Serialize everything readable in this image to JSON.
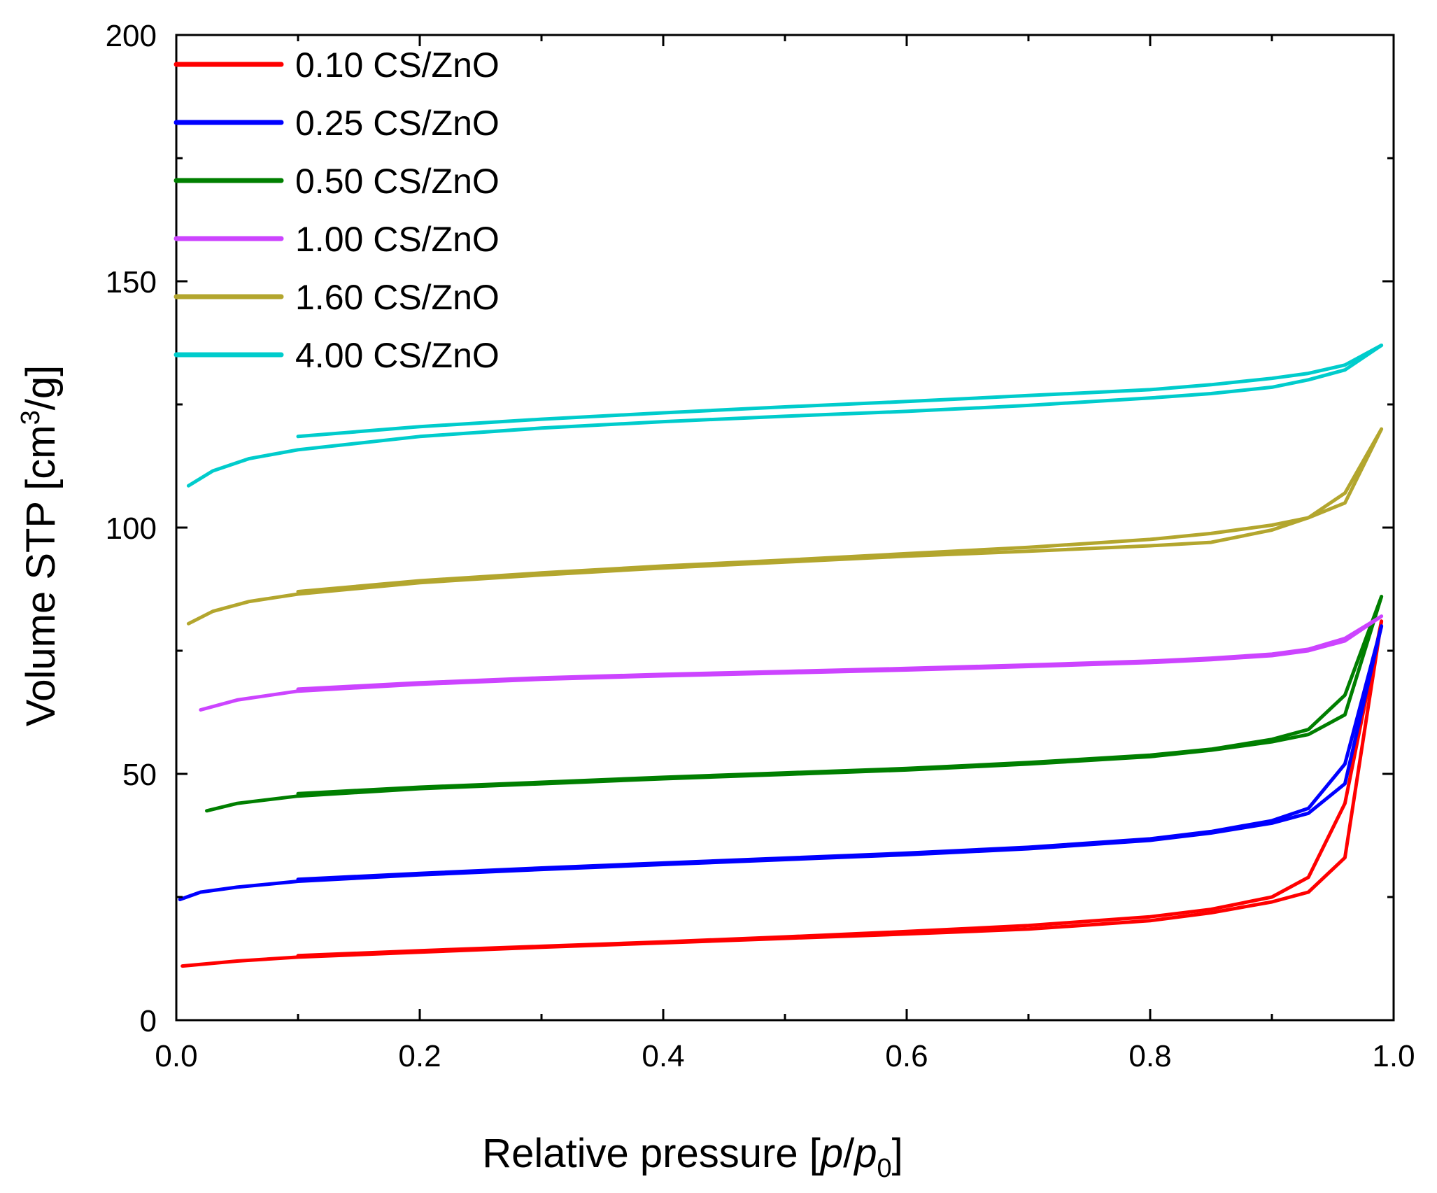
{
  "chart_data": {
    "type": "line",
    "title": "",
    "xlabel_parts": [
      "Relative pressure [",
      "p",
      "/",
      "p",
      "0",
      "]"
    ],
    "ylabel_parts": [
      "Volume STP [cm",
      "3",
      "/g]"
    ],
    "xlim": [
      0.0,
      1.0
    ],
    "ylim": [
      0,
      200
    ],
    "xticks": [
      "0.0",
      "0.2",
      "0.4",
      "0.6",
      "0.8",
      "1.0"
    ],
    "xtick_values": [
      0.0,
      0.2,
      0.4,
      0.6,
      0.8,
      1.0
    ],
    "yticks": [
      "0",
      "50",
      "100",
      "150",
      "200"
    ],
    "ytick_values": [
      0,
      50,
      100,
      150,
      200
    ],
    "grid": false,
    "legend_position": "top-left",
    "series": [
      {
        "name": "0.10 CS/ZnO",
        "color": "#ff0000",
        "adsorption": [
          [
            0.005,
            11.0
          ],
          [
            0.05,
            12.0
          ],
          [
            0.1,
            12.8
          ],
          [
            0.2,
            13.8
          ],
          [
            0.3,
            14.8
          ],
          [
            0.4,
            15.7
          ],
          [
            0.5,
            16.6
          ],
          [
            0.6,
            17.5
          ],
          [
            0.7,
            18.5
          ],
          [
            0.8,
            20.2
          ],
          [
            0.85,
            21.8
          ],
          [
            0.9,
            24.0
          ],
          [
            0.93,
            26.0
          ],
          [
            0.96,
            33.0
          ],
          [
            0.99,
            81.0
          ]
        ],
        "desorption": [
          [
            0.99,
            81.0
          ],
          [
            0.96,
            44.0
          ],
          [
            0.93,
            29.0
          ],
          [
            0.9,
            25.0
          ],
          [
            0.85,
            22.5
          ],
          [
            0.8,
            21.0
          ],
          [
            0.7,
            19.2
          ],
          [
            0.6,
            18.0
          ],
          [
            0.5,
            16.9
          ],
          [
            0.4,
            15.9
          ],
          [
            0.3,
            15.0
          ],
          [
            0.2,
            14.1
          ],
          [
            0.1,
            13.1
          ]
        ]
      },
      {
        "name": "0.25 CS/ZnO",
        "color": "#0000ff",
        "adsorption": [
          [
            0.003,
            24.5
          ],
          [
            0.02,
            26.0
          ],
          [
            0.05,
            27.0
          ],
          [
            0.1,
            28.2
          ],
          [
            0.2,
            29.5
          ],
          [
            0.3,
            30.6
          ],
          [
            0.4,
            31.6
          ],
          [
            0.5,
            32.6
          ],
          [
            0.6,
            33.6
          ],
          [
            0.7,
            34.8
          ],
          [
            0.8,
            36.5
          ],
          [
            0.85,
            38.0
          ],
          [
            0.9,
            40.0
          ],
          [
            0.93,
            42.0
          ],
          [
            0.96,
            48.0
          ],
          [
            0.99,
            80.0
          ]
        ],
        "desorption": [
          [
            0.99,
            80.0
          ],
          [
            0.96,
            52.0
          ],
          [
            0.93,
            43.0
          ],
          [
            0.9,
            40.5
          ],
          [
            0.85,
            38.3
          ],
          [
            0.8,
            36.8
          ],
          [
            0.7,
            35.1
          ],
          [
            0.6,
            33.9
          ],
          [
            0.5,
            32.9
          ],
          [
            0.4,
            31.9
          ],
          [
            0.3,
            30.9
          ],
          [
            0.2,
            29.8
          ],
          [
            0.1,
            28.6
          ]
        ]
      },
      {
        "name": "0.50 CS/ZnO",
        "color": "#007f00",
        "adsorption": [
          [
            0.025,
            42.5
          ],
          [
            0.05,
            44.0
          ],
          [
            0.1,
            45.5
          ],
          [
            0.2,
            47.0
          ],
          [
            0.3,
            48.0
          ],
          [
            0.4,
            49.0
          ],
          [
            0.5,
            49.9
          ],
          [
            0.6,
            50.8
          ],
          [
            0.7,
            52.0
          ],
          [
            0.8,
            53.5
          ],
          [
            0.85,
            54.8
          ],
          [
            0.9,
            56.5
          ],
          [
            0.93,
            58.0
          ],
          [
            0.96,
            62.0
          ],
          [
            0.99,
            86.0
          ]
        ],
        "desorption": [
          [
            0.99,
            86.0
          ],
          [
            0.96,
            66.0
          ],
          [
            0.93,
            59.0
          ],
          [
            0.9,
            57.0
          ],
          [
            0.85,
            55.0
          ],
          [
            0.8,
            53.8
          ],
          [
            0.7,
            52.3
          ],
          [
            0.6,
            51.1
          ],
          [
            0.5,
            50.2
          ],
          [
            0.4,
            49.3
          ],
          [
            0.3,
            48.3
          ],
          [
            0.2,
            47.3
          ],
          [
            0.1,
            46.0
          ]
        ]
      },
      {
        "name": "1.00 CS/ZnO",
        "color": "#cc44ff",
        "adsorption": [
          [
            0.02,
            63.0
          ],
          [
            0.05,
            65.0
          ],
          [
            0.1,
            66.8
          ],
          [
            0.2,
            68.2
          ],
          [
            0.3,
            69.2
          ],
          [
            0.4,
            69.9
          ],
          [
            0.5,
            70.5
          ],
          [
            0.6,
            71.1
          ],
          [
            0.7,
            71.8
          ],
          [
            0.8,
            72.6
          ],
          [
            0.85,
            73.2
          ],
          [
            0.9,
            74.0
          ],
          [
            0.93,
            75.0
          ],
          [
            0.96,
            77.0
          ],
          [
            0.99,
            82.0
          ]
        ],
        "desorption": [
          [
            0.99,
            82.0
          ],
          [
            0.96,
            77.5
          ],
          [
            0.93,
            75.3
          ],
          [
            0.9,
            74.3
          ],
          [
            0.85,
            73.5
          ],
          [
            0.8,
            72.9
          ],
          [
            0.7,
            72.1
          ],
          [
            0.6,
            71.4
          ],
          [
            0.5,
            70.8
          ],
          [
            0.4,
            70.2
          ],
          [
            0.3,
            69.5
          ],
          [
            0.2,
            68.5
          ],
          [
            0.1,
            67.2
          ]
        ]
      },
      {
        "name": "1.60 CS/ZnO",
        "color": "#b3a62e",
        "adsorption": [
          [
            0.01,
            80.5
          ],
          [
            0.03,
            83.0
          ],
          [
            0.06,
            85.0
          ],
          [
            0.1,
            86.5
          ],
          [
            0.2,
            88.8
          ],
          [
            0.3,
            90.4
          ],
          [
            0.4,
            91.8
          ],
          [
            0.5,
            93.0
          ],
          [
            0.6,
            94.2
          ],
          [
            0.7,
            95.2
          ],
          [
            0.8,
            96.3
          ],
          [
            0.85,
            97.0
          ],
          [
            0.9,
            99.5
          ],
          [
            0.93,
            102.0
          ],
          [
            0.96,
            105.0
          ],
          [
            0.99,
            120.0
          ]
        ],
        "desorption": [
          [
            0.99,
            120.0
          ],
          [
            0.96,
            107.0
          ],
          [
            0.93,
            102.0
          ],
          [
            0.9,
            100.5
          ],
          [
            0.85,
            98.8
          ],
          [
            0.8,
            97.6
          ],
          [
            0.7,
            96.0
          ],
          [
            0.6,
            94.7
          ],
          [
            0.5,
            93.4
          ],
          [
            0.4,
            92.2
          ],
          [
            0.3,
            90.8
          ],
          [
            0.2,
            89.2
          ],
          [
            0.1,
            87.0
          ]
        ]
      },
      {
        "name": "4.00 CS/ZnO",
        "color": "#00cccc",
        "adsorption": [
          [
            0.01,
            108.5
          ],
          [
            0.03,
            111.5
          ],
          [
            0.06,
            114.0
          ],
          [
            0.1,
            115.8
          ],
          [
            0.2,
            118.5
          ],
          [
            0.3,
            120.2
          ],
          [
            0.4,
            121.5
          ],
          [
            0.5,
            122.6
          ],
          [
            0.6,
            123.6
          ],
          [
            0.7,
            124.8
          ],
          [
            0.8,
            126.3
          ],
          [
            0.85,
            127.2
          ],
          [
            0.9,
            128.5
          ],
          [
            0.93,
            130.0
          ],
          [
            0.96,
            132.0
          ],
          [
            0.99,
            137.0
          ]
        ],
        "desorption": [
          [
            0.99,
            137.0
          ],
          [
            0.96,
            133.0
          ],
          [
            0.93,
            131.3
          ],
          [
            0.9,
            130.3
          ],
          [
            0.85,
            129.0
          ],
          [
            0.8,
            128.0
          ],
          [
            0.7,
            126.8
          ],
          [
            0.6,
            125.6
          ],
          [
            0.5,
            124.5
          ],
          [
            0.4,
            123.3
          ],
          [
            0.3,
            122.0
          ],
          [
            0.2,
            120.5
          ],
          [
            0.1,
            118.5
          ]
        ]
      }
    ]
  }
}
